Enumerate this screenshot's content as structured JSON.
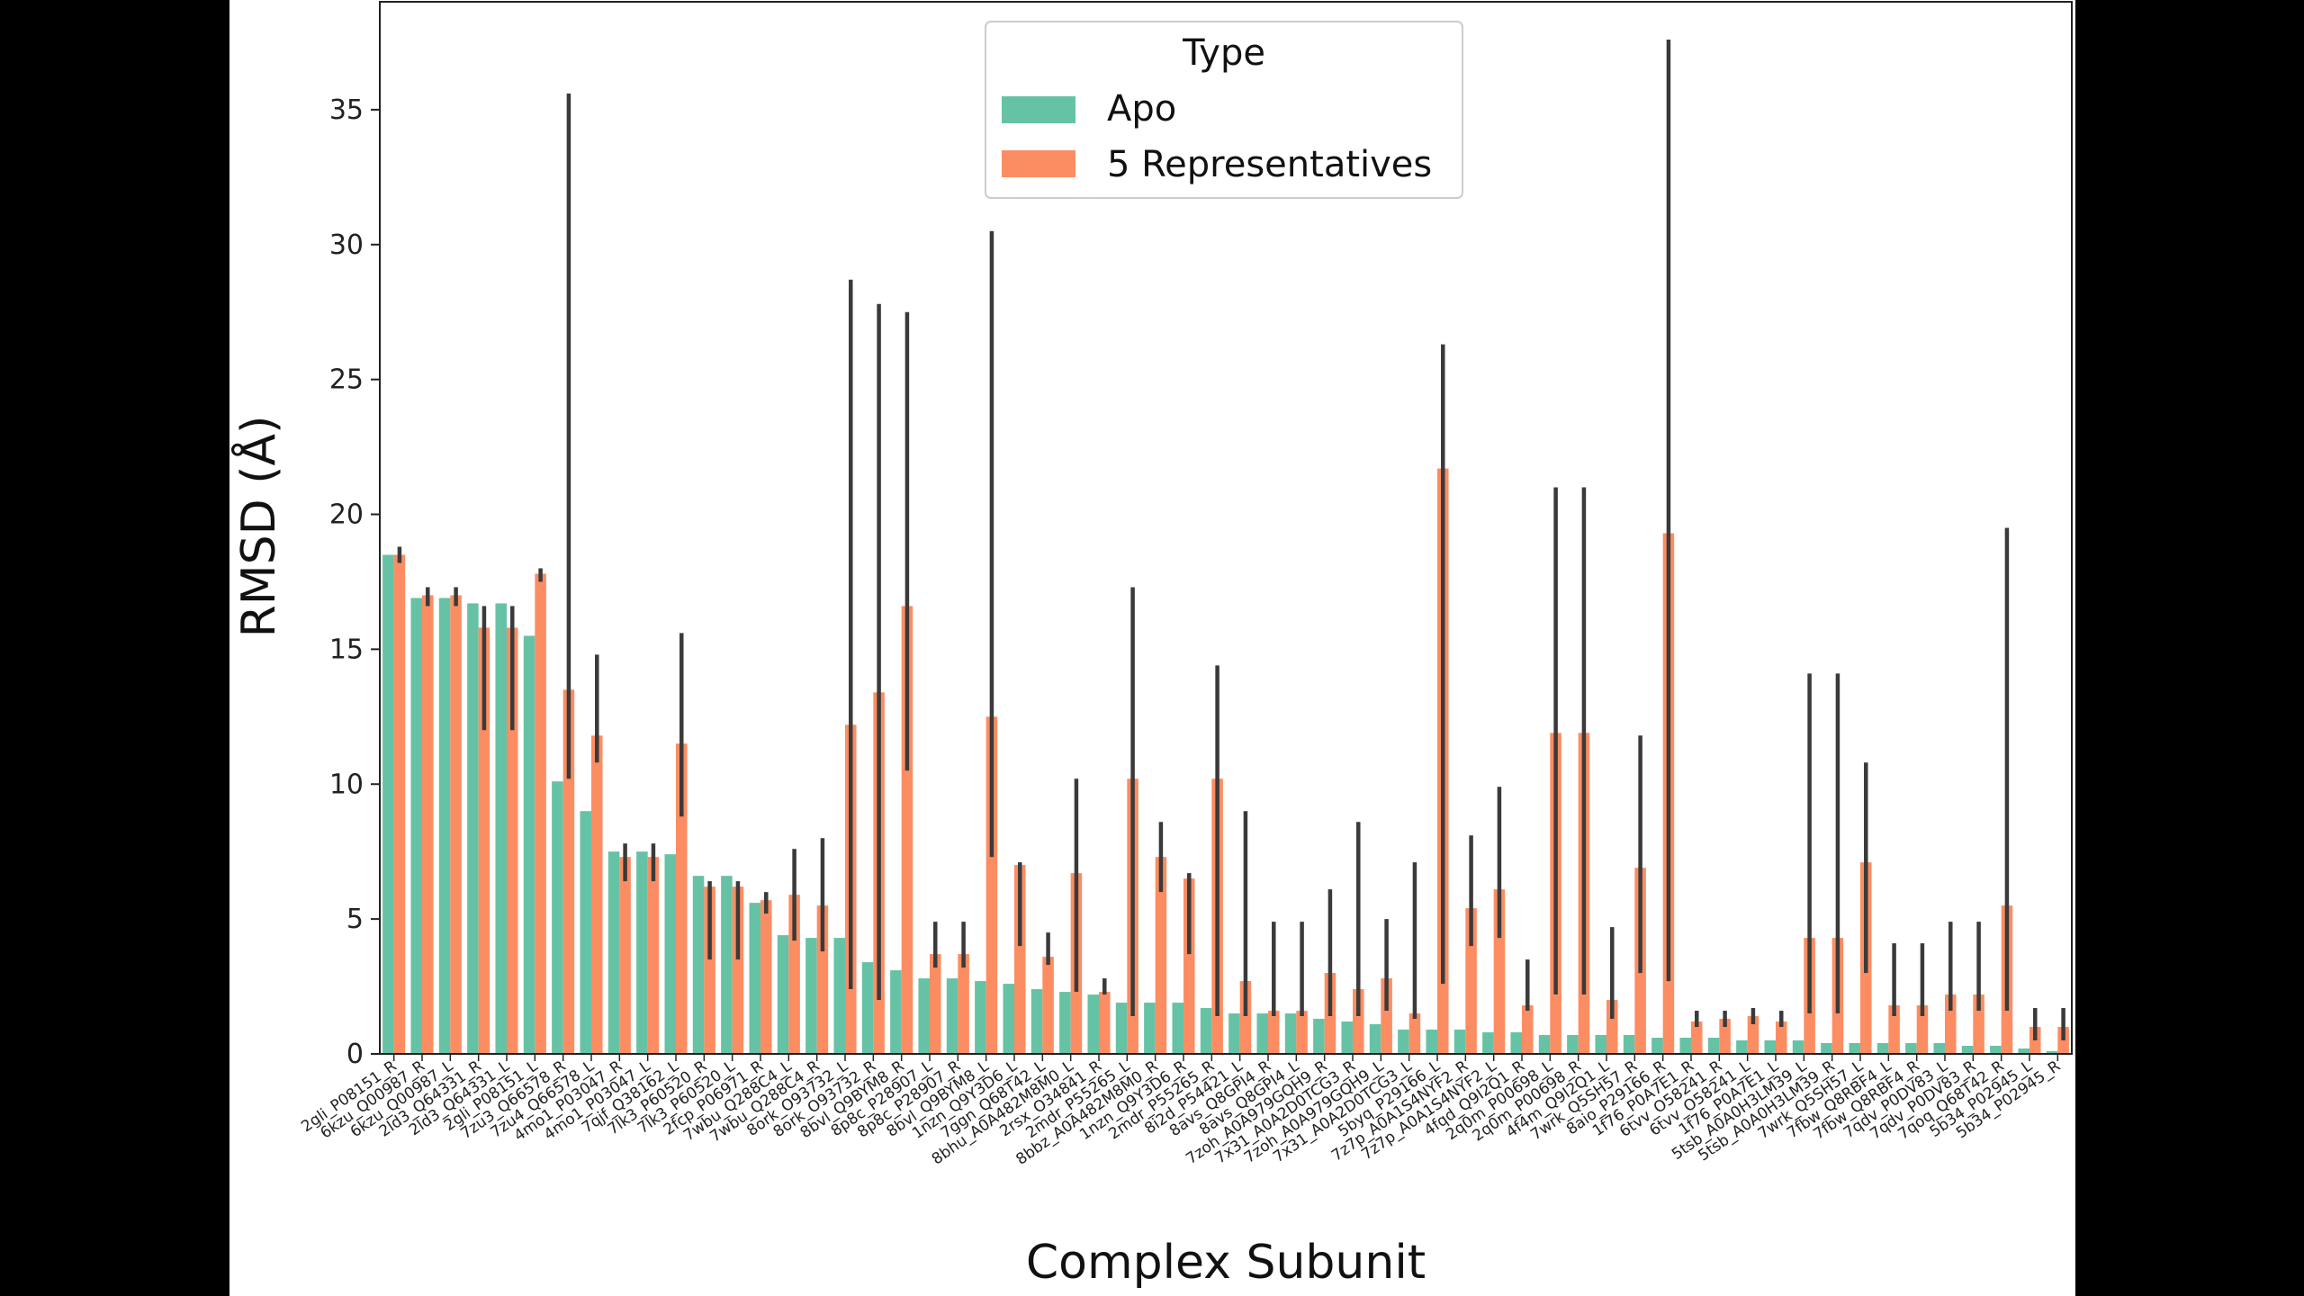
{
  "chart_data": {
    "type": "bar",
    "title": "",
    "xlabel": "Complex Subunit",
    "ylabel": "RMSD (Å)",
    "ylim": [
      0,
      39
    ],
    "yticks": [
      0,
      5,
      10,
      15,
      20,
      25,
      30,
      35
    ],
    "grid": false,
    "legend": {
      "title": "Type",
      "placement": "top-center"
    },
    "colors": {
      "apo": "#66c2a5",
      "rep": "#fc8d62",
      "error": "#3a3a3a"
    },
    "categories": [
      "2gli_P08151_R",
      "6kzu_Q00987_R",
      "6kzu_Q00987_L",
      "2ld3_Q64331_R",
      "2ld3_Q64331_L",
      "2gli_P08151_L",
      "7zu3_Q66578_R",
      "7zu4_Q66578_L",
      "4mo1_P03047_R",
      "4mo1_P03047_L",
      "7qjf_Q38162_L",
      "7lk3_P60520_R",
      "7lk3_P60520_L",
      "2fcp_P06971_R",
      "7wbu_Q288C4_L",
      "7wbu_Q288C4_R",
      "8ork_O93732_L",
      "8ork_O93732_R",
      "8bvl_Q9BYM8_R",
      "8p8c_P28907_L",
      "8p8c_P28907_R",
      "8bvl_Q9BYM8_L",
      "1nzn_Q9Y3D6_L",
      "7ggn_Q68T42_L",
      "8bhu_A0A482M8M0_L",
      "2rsx_O34841_R",
      "2mdr_P55265_L",
      "8bbz_A0A482M8M0_R",
      "1nzn_Q9Y3D6_R",
      "2mdr_P55265_R",
      "8i2d_P54421_L",
      "8avs_Q8GPI4_R",
      "8avs_Q8GPI4_L",
      "7zoh_A0A979GQH9_R",
      "7x31_A0A2D0TCG3_R",
      "7zoh_A0A979GQH9_L",
      "7x31_A0A2D0TCG3_L",
      "5byq_P29166_L",
      "7z7p_A0A1S4NYF2_R",
      "7z7p_A0A1S4NYF2_L",
      "4fqd_Q9I2Q1_R",
      "2q0m_P00698_L",
      "2q0m_P00698_R",
      "4f4m_Q9I2Q1_L",
      "7wrk_Q5SH57_R",
      "8aio_P29166_R",
      "1f76_P0A7E1_R",
      "6tvv_O58241_R",
      "6tvv_O58241_L",
      "1f76_P0A7E1_L",
      "5tsb_A0A0H3LM39_L",
      "5tsb_A0A0H3LM39_R",
      "7wrk_Q5SH57_L",
      "7fbw_Q8RBF4_L",
      "7fbw_Q8RBF4_R",
      "7qdv_P0DV83_L",
      "7qdv_P0DV83_R",
      "7qoq_Q68T42_R",
      "5b34_P02945_L",
      "5b34_P02945_R"
    ],
    "series": [
      {
        "name": "Apo",
        "values": [
          18.5,
          16.9,
          16.9,
          16.7,
          16.7,
          15.5,
          10.1,
          9.0,
          7.5,
          7.5,
          7.4,
          6.6,
          6.6,
          5.6,
          4.4,
          4.3,
          4.3,
          3.4,
          3.1,
          2.8,
          2.8,
          2.7,
          2.6,
          2.4,
          2.3,
          2.2,
          1.9,
          1.9,
          1.9,
          1.7,
          1.5,
          1.5,
          1.5,
          1.3,
          1.2,
          1.1,
          0.9,
          0.9,
          0.9,
          0.8,
          0.8,
          0.7,
          0.7,
          0.7,
          0.7,
          0.6,
          0.6,
          0.6,
          0.5,
          0.5,
          0.5,
          0.4,
          0.4,
          0.4,
          0.4,
          0.4,
          0.3,
          0.3,
          0.2,
          0.1
        ]
      },
      {
        "name": "5 Representatives",
        "values": [
          18.5,
          17.0,
          17.0,
          15.8,
          15.8,
          17.8,
          13.5,
          11.8,
          7.3,
          7.3,
          11.5,
          6.2,
          6.2,
          5.7,
          5.9,
          5.5,
          12.2,
          13.4,
          16.6,
          3.7,
          3.7,
          12.5,
          7.0,
          3.6,
          6.7,
          2.3,
          10.2,
          7.3,
          6.5,
          10.2,
          2.7,
          1.6,
          1.6,
          3.0,
          2.4,
          2.8,
          1.5,
          21.7,
          5.4,
          6.1,
          1.8,
          11.9,
          11.9,
          2.0,
          6.9,
          19.3,
          1.2,
          1.3,
          1.4,
          1.2,
          4.3,
          4.3,
          7.1,
          1.8,
          1.8,
          2.2,
          2.2,
          5.5,
          1.0,
          1.0
        ]
      }
    ]
  }
}
